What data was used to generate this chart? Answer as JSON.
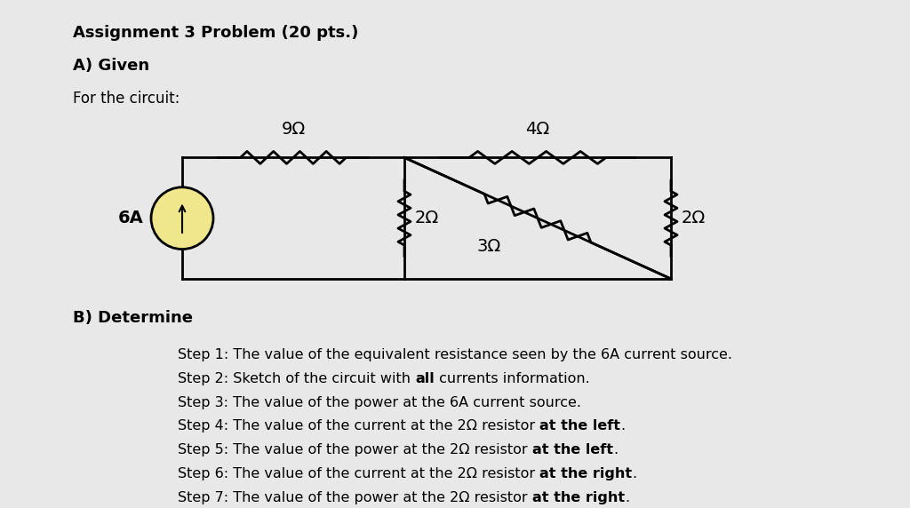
{
  "title": "Assignment 3 Problem (20 pts.)",
  "subtitle_a": "A) Given",
  "subtitle_b": "For the circuit:",
  "section_b": "B) Determine",
  "steps": [
    [
      "Step 1: The value of the equivalent resistance seen by the 6A current source.",
      []
    ],
    [
      "Step 2: Sketch of the circuit with ",
      [
        [
          "all",
          true
        ]
      ],
      [
        " currents information.",
        false
      ]
    ],
    [
      "Step 3: The value of the power at the 6A current source.",
      []
    ],
    [
      "Step 4: The value of the current at the 2Ω resistor ",
      [
        [
          "at the left",
          true
        ]
      ],
      [
        ".",
        false
      ]
    ],
    [
      "Step 5: The value of the power at the 2Ω resistor ",
      [
        [
          "at the left",
          true
        ]
      ],
      [
        ".",
        false
      ]
    ],
    [
      "Step 6: The value of the current at the 2Ω resistor ",
      [
        [
          "at the right",
          true
        ]
      ],
      [
        ".",
        false
      ]
    ],
    [
      "Step 7: The value of the power at the 2Ω resistor ",
      [
        [
          "at the right",
          true
        ]
      ],
      [
        ".",
        false
      ]
    ]
  ],
  "steps_plain": [
    "Step 1: The value of the equivalent resistance seen by the 6A current source.",
    "Step 2: Sketch of the circuit with **all** currents information.",
    "Step 3: The value of the power at the 6A current source.",
    "Step 4: The value of the current at the 2Ω resistor **at the left**.",
    "Step 5: The value of the power at the 2Ω resistor **at the left**.",
    "Step 6: The value of the current at the 2Ω resistor **at the right**.",
    "Step 7: The value of the power at the 2Ω resistor **at the right**."
  ],
  "background_color": "#e8e8e8",
  "text_color": "#000000",
  "circuit_color": "#000000",
  "source_fill": "#f0e68c",
  "resistor_9": "9Ω",
  "resistor_4": "4Ω",
  "resistor_2L": "2Ω",
  "resistor_3": "3Ω",
  "resistor_2R": "2Ω",
  "source_label": "6A"
}
